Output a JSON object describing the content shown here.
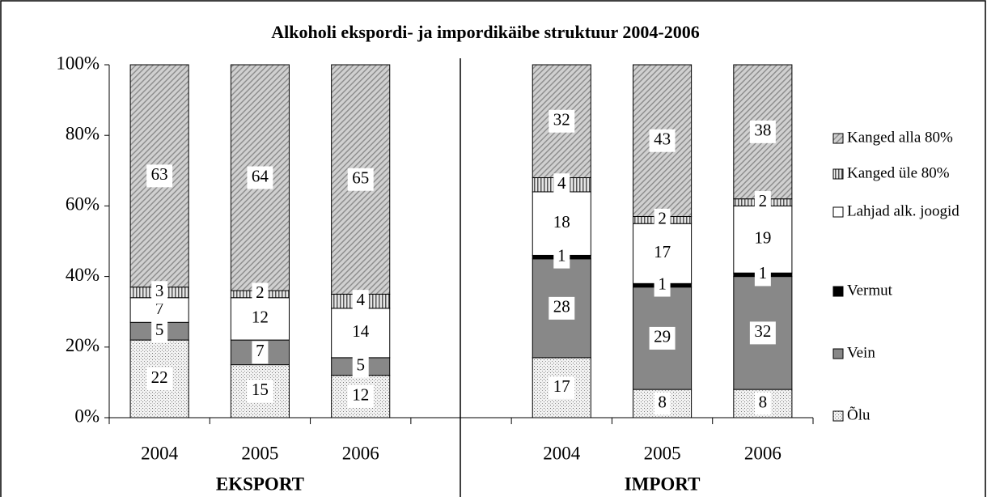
{
  "chart_data": {
    "type": "stacked_bar",
    "title": "Alkoholi ekspordi- ja impordikäibe struktuur 2004-2006",
    "categories": [
      "2004",
      "2005",
      "2006",
      null,
      "2004",
      "2005",
      "2006"
    ],
    "groups": [
      {
        "label": "EKSPORT",
        "categories": [
          0,
          1,
          2
        ]
      },
      {
        "label": "IMPORT",
        "categories": [
          4,
          5,
          6
        ]
      }
    ],
    "series": [
      {
        "name": "Õlu",
        "color": "#e2e2e2",
        "values": [
          22,
          15,
          12,
          null,
          17,
          8,
          8
        ]
      },
      {
        "name": "Vein",
        "color": "#888888",
        "values": [
          5,
          7,
          5,
          null,
          28,
          29,
          32
        ]
      },
      {
        "name": "Vermut",
        "color": "#000000",
        "values": [
          0,
          0,
          0,
          null,
          1,
          1,
          1
        ]
      },
      {
        "name": "Lahjad alk. joogid",
        "color": "#ffffff",
        "values": [
          7,
          12,
          14,
          null,
          18,
          17,
          19
        ]
      },
      {
        "name": "Kanged üle 80%",
        "color": "#c4c4c4",
        "values": [
          3,
          2,
          4,
          null,
          4,
          2,
          2
        ]
      },
      {
        "name": "Kanged alla 80%",
        "color": "#bdbdbd",
        "values": [
          63,
          64,
          65,
          null,
          32,
          43,
          38
        ]
      }
    ],
    "ylim": [
      0,
      100
    ],
    "yticks": [
      {
        "value": 0,
        "label": "0%"
      },
      {
        "value": 20,
        "label": "20%"
      },
      {
        "value": 40,
        "label": "40%"
      },
      {
        "value": 60,
        "label": "60%"
      },
      {
        "value": 80,
        "label": "80%"
      },
      {
        "value": 100,
        "label": "100%"
      }
    ],
    "legend": "right"
  }
}
